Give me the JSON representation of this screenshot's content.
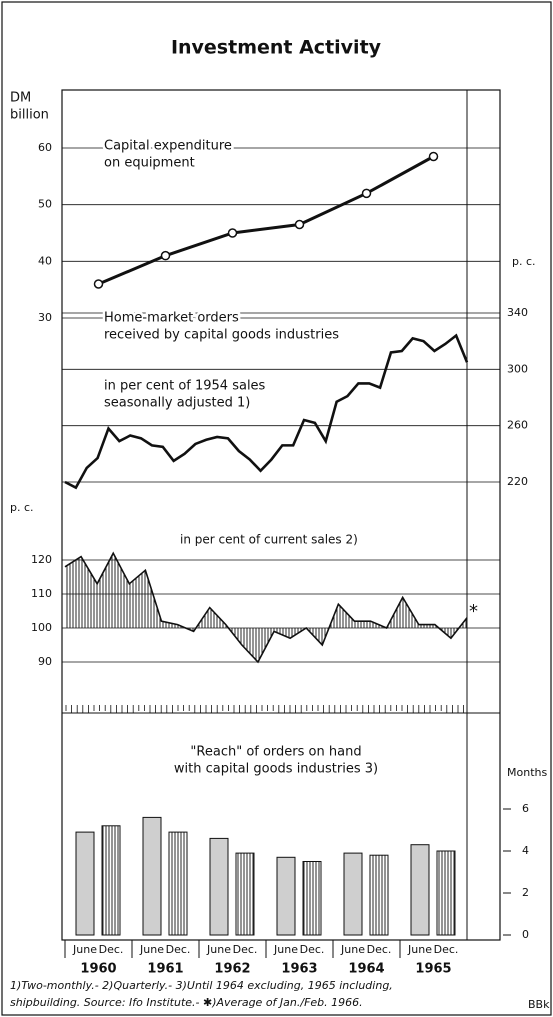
{
  "title": "Investment Activity",
  "chart_data": [
    {
      "type": "line",
      "label": [
        "Capital expenditure",
        "on equipment"
      ],
      "y_label": [
        "DM",
        "billion"
      ],
      "x": [
        1960,
        1961,
        1962,
        1963,
        1964,
        1965
      ],
      "values": [
        36,
        41,
        45,
        46.5,
        52,
        58.5
      ],
      "color": "#111",
      "ylim": [
        30,
        60
      ],
      "yticks": [
        30,
        40,
        50,
        60
      ],
      "grid": true
    },
    {
      "type": "line",
      "label": [
        "Home-market orders",
        "received by capital goods industries"
      ],
      "sublabel": [
        "in per cent of 1954 sales",
        "seasonally adjusted 1)"
      ],
      "y_label": "p. c.",
      "values": [
        220,
        216,
        230,
        237,
        258,
        249,
        253,
        251,
        246,
        245,
        235,
        240,
        247,
        250,
        252,
        251,
        242,
        236,
        228,
        236,
        246,
        246,
        264,
        262,
        249,
        277,
        281,
        290,
        290,
        287,
        312,
        313,
        322,
        320,
        313,
        318,
        324,
        305
      ],
      "color": "#111",
      "ylim": [
        220,
        340
      ],
      "yticks": [
        220,
        260,
        300,
        340
      ],
      "grid": true
    },
    {
      "type": "area",
      "label": "in per cent of current sales 2)",
      "y_label": "p. c.",
      "values": [
        118,
        121,
        113,
        122,
        113,
        117,
        102,
        101,
        99,
        106,
        101,
        95,
        90,
        99,
        97,
        100,
        95,
        107,
        102,
        102,
        100,
        109,
        101,
        101,
        97,
        103
      ],
      "annotation": "*",
      "baseline": 100,
      "color": "#111",
      "ylim": [
        90,
        120
      ],
      "yticks": [
        90,
        100,
        110,
        120
      ],
      "grid": true
    },
    {
      "type": "bar",
      "label": [
        "\"Reach\" of orders on hand",
        "with capital goods industries 3)"
      ],
      "y_label": "Months",
      "categories": [
        "1960",
        "1961",
        "1962",
        "1963",
        "1964",
        "1965"
      ],
      "series": [
        {
          "name": "June",
          "color": "#cfcfcf",
          "values": [
            4.9,
            5.6,
            4.6,
            3.7,
            3.9,
            4.3
          ]
        },
        {
          "name": "Dec.",
          "color": "#222",
          "values": [
            5.2,
            4.9,
            3.9,
            3.5,
            3.8,
            4.0
          ]
        }
      ],
      "ylim": [
        0,
        6
      ],
      "yticks": [
        0,
        2,
        4,
        6
      ]
    }
  ],
  "footnotes": [
    "1)Two-monthly.- 2)Quarterly.- 3)Until 1964 excluding, 1965 including,",
    "shipbuilding. Source: Ifo Institute.- ✱)Average of Jan./Feb. 1966."
  ],
  "source_mark": "BBk"
}
